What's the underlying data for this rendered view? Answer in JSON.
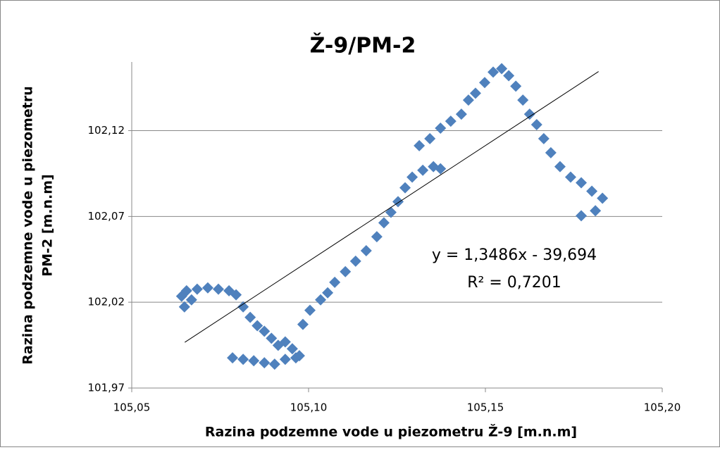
{
  "chart_data": {
    "type": "scatter",
    "title": "Ž-9/PM-2",
    "xlabel": "Razina podzemne vode u piezometru Ž-9 [m.n.m]",
    "ylabel": [
      "Razina podzemne vode u piezometru",
      "PM-2 [m.n.m]"
    ],
    "color": "#4f81bd",
    "x": [
      105.0641,
      105.0649,
      105.0655,
      105.0669,
      105.0685,
      105.0715,
      105.0745,
      105.0775,
      105.0795,
      105.0815,
      105.0835,
      105.0855,
      105.0875,
      105.0895,
      105.0914,
      105.0934,
      105.0954,
      105.0974,
      105.0785,
      105.0815,
      105.0845,
      105.0875,
      105.0904,
      105.0934,
      105.0964,
      105.0984,
      105.1004,
      105.1034,
      105.1054,
      105.1074,
      105.1104,
      105.1133,
      105.1163,
      105.1193,
      105.1213,
      105.1233,
      105.1253,
      105.1273,
      105.1293,
      105.1323,
      105.1353,
      105.1373,
      105.1313,
      105.1343,
      105.1373,
      105.1402,
      105.1432,
      105.1452,
      105.1472,
      105.1498,
      105.1522,
      105.1546,
      105.1566,
      105.1586,
      105.1606,
      105.1625,
      105.1645,
      105.1665,
      105.1685,
      105.1711,
      105.1741,
      105.1771,
      105.1801,
      105.1831,
      105.1771,
      105.1811
    ],
    "values": [
      102.0235,
      102.0173,
      102.0267,
      102.0214,
      102.0276,
      102.0284,
      102.0276,
      102.0267,
      102.0243,
      102.0173,
      102.0112,
      102.0063,
      102.0031,
      101.999,
      101.9949,
      101.9969,
      101.9929,
      101.9888,
      101.9876,
      101.9867,
      101.9859,
      101.9847,
      101.9839,
      101.9867,
      101.9876,
      102.0071,
      102.0153,
      102.0214,
      102.0255,
      102.0316,
      102.0378,
      102.0439,
      102.05,
      102.0582,
      102.0663,
      102.0724,
      102.0786,
      102.0867,
      102.0929,
      102.0969,
      102.099,
      102.0978,
      102.1112,
      102.1153,
      102.1214,
      102.1255,
      102.1296,
      102.1378,
      102.1418,
      102.148,
      102.1541,
      102.1561,
      102.152,
      102.1459,
      102.1378,
      102.1296,
      102.1235,
      102.1153,
      102.1071,
      102.099,
      102.0929,
      102.0896,
      102.0847,
      102.0806,
      102.0704,
      102.0733
    ],
    "xlim": [
      105.05,
      105.2
    ],
    "xticks": [
      {
        "value": 105.05,
        "label": "105,05"
      },
      {
        "value": 105.1,
        "label": "105,10"
      },
      {
        "value": 105.15,
        "label": "105,15"
      },
      {
        "value": 105.2,
        "label": "105,20"
      }
    ],
    "ylim": [
      101.97,
      102.16
    ],
    "yticks": [
      {
        "value": 101.97,
        "label": "101,97"
      },
      {
        "value": 102.02,
        "label": "102,02"
      },
      {
        "value": 102.07,
        "label": "102,07"
      },
      {
        "value": 102.12,
        "label": "102,12"
      }
    ],
    "grid": true,
    "trendline": {
      "slope": 1.3486,
      "intercept": -39.694,
      "xrange": [
        105.065,
        105.182
      ]
    },
    "annotations": [
      "y = 1,3486x - 39,694",
      "R² = 0,7201"
    ]
  }
}
